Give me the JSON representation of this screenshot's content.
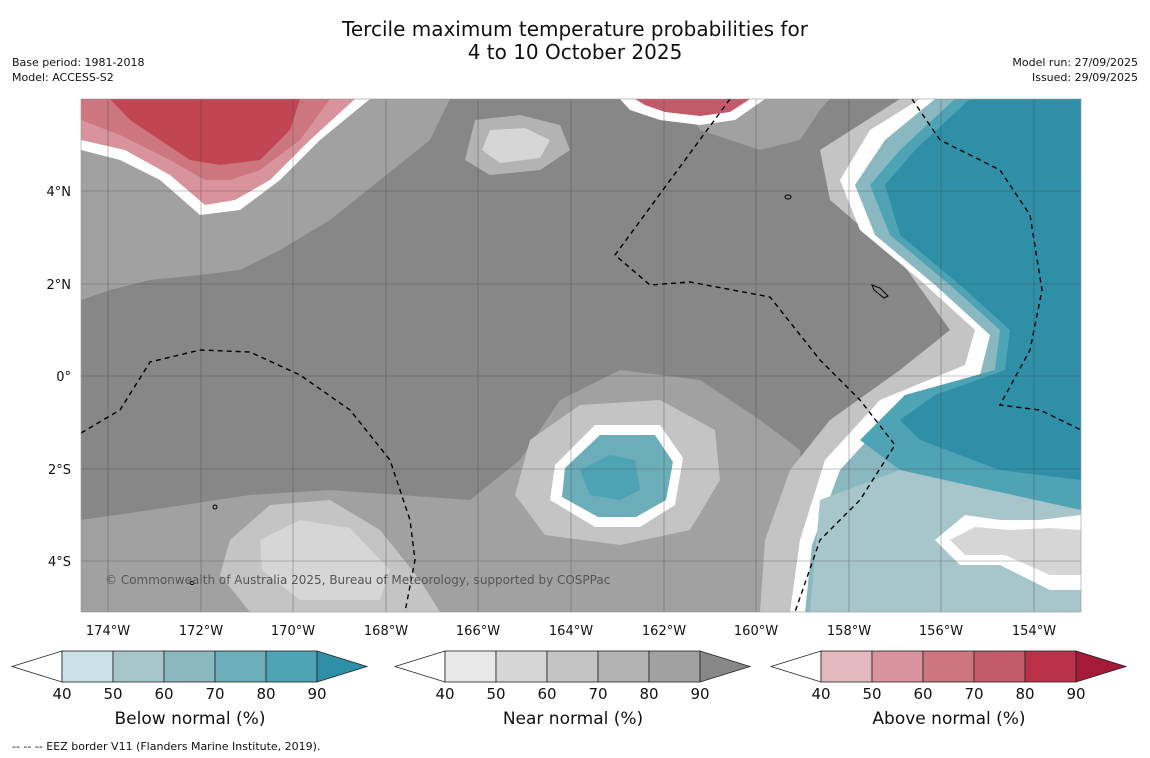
{
  "title_line1": "Tercile maximum temperature probabilities for",
  "title_line2": "4 to 10 October 2025",
  "base_period": "Base period: 1981-2018",
  "model": "Model: ACCESS-S2",
  "model_run": "Model run: 27/09/2025",
  "issued": "Issued: 29/09/2025",
  "copyright": "© Commonwealth of Australia 2025, Bureau of Meteorology, supported by COSPPac",
  "footnote": "--  --  -- EEZ border V11 (Flanders Marine Institute, 2019).",
  "map": {
    "x_ticks": [
      "174°W",
      "172°W",
      "170°W",
      "168°W",
      "166°W",
      "164°W",
      "162°W",
      "160°W",
      "158°W",
      "156°W",
      "154°W"
    ],
    "y_ticks": [
      "4°N",
      "2°N",
      "0°",
      "2°S",
      "4°S"
    ]
  },
  "colorbars": [
    {
      "label": "Below normal (%)",
      "ticks": [
        "40",
        "50",
        "60",
        "70",
        "80",
        "90"
      ],
      "colors": [
        "#c9e1e8",
        "#a7c6cc",
        "#8ab8c1",
        "#6badb9",
        "#4ea3b5",
        "#2e8fa7"
      ]
    },
    {
      "label": "Near normal (%)",
      "ticks": [
        "40",
        "50",
        "60",
        "70",
        "80",
        "90"
      ],
      "colors": [
        "#e8e8e8",
        "#d6d6d6",
        "#c4c4c4",
        "#b3b3b3",
        "#a1a1a1",
        "#878787"
      ]
    },
    {
      "label": "Above normal (%)",
      "ticks": [
        "40",
        "50",
        "60",
        "70",
        "80",
        "90"
      ],
      "colors": [
        "#e2b9bf",
        "#d8939c",
        "#cc7680",
        "#c35a69",
        "#b9324a",
        "#a41a38"
      ]
    }
  ],
  "colors": {
    "near_base": "#878787",
    "below_strong": "#2e8fa7",
    "above_strong": "#c24553"
  }
}
